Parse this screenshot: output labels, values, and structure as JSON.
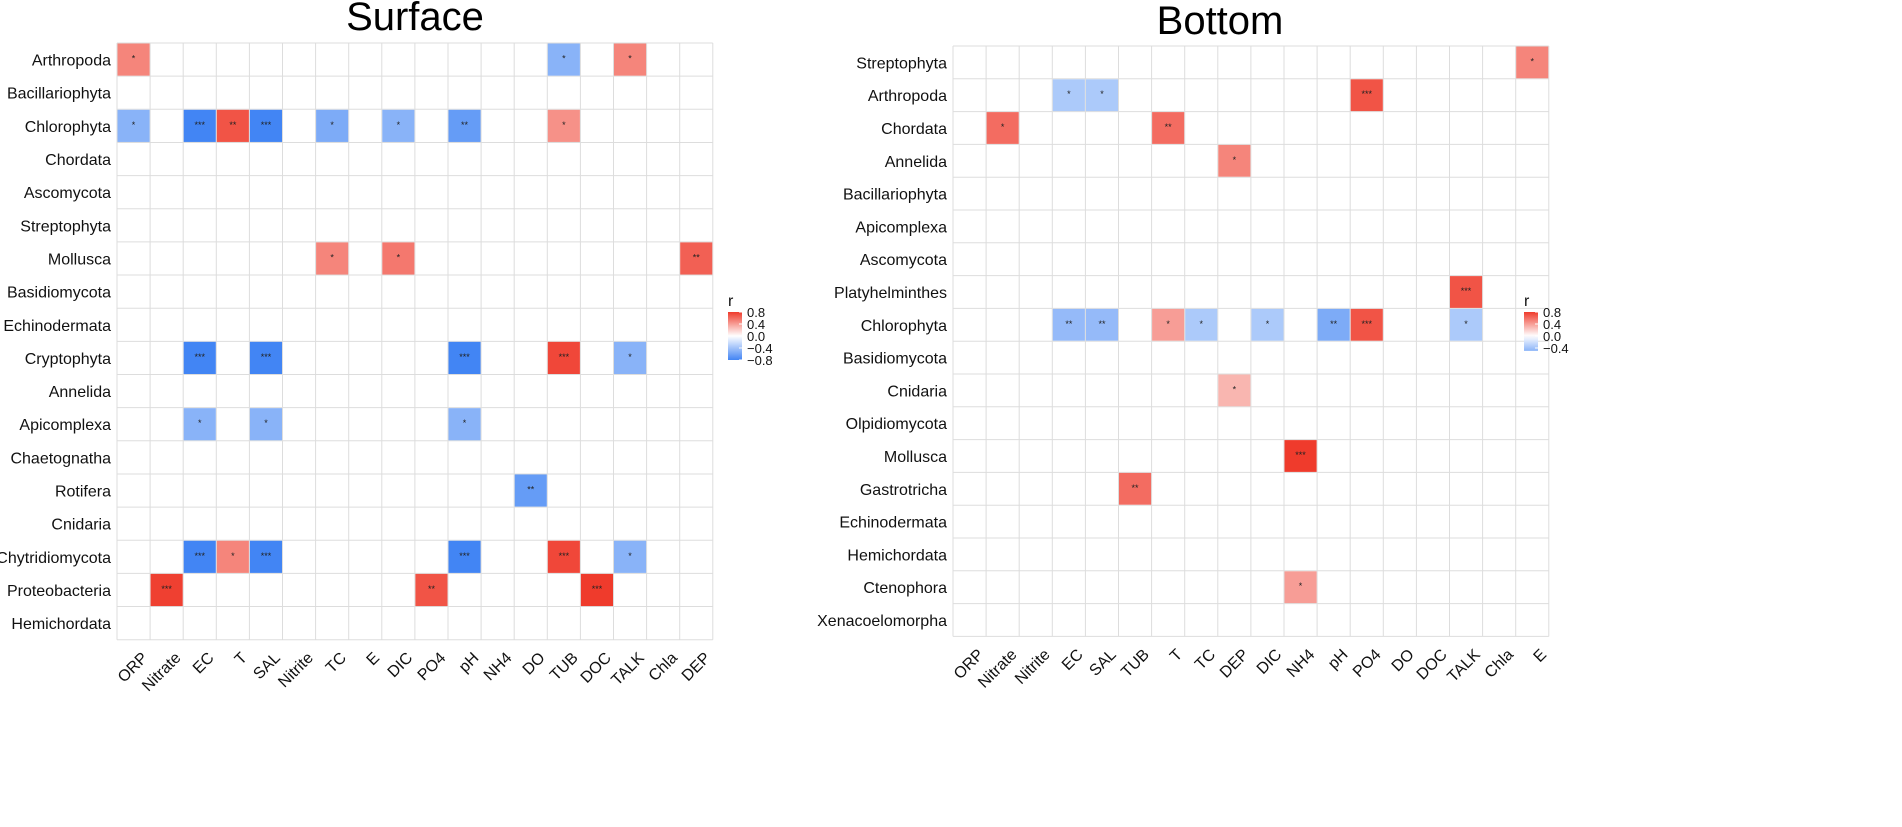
{
  "chart_data": [
    {
      "type": "heatmap",
      "title": "Surface",
      "rows": [
        "Arthropoda",
        "Bacillariophyta",
        "Chlorophyta",
        "Chordata",
        "Ascomycota",
        "Streptophyta",
        "Mollusca",
        "Basidiomycota",
        "Echinodermata",
        "Cryptophyta",
        "Annelida",
        "Apicomplexa",
        "Chaetognatha",
        "Rotifera",
        "Cnidaria",
        "Chytridiomycota",
        "Proteobacteria",
        "Hemichordata"
      ],
      "columns": [
        "ORP",
        "Nitrate",
        "EC",
        "T",
        "SAL",
        "Nitrite",
        "TC",
        "E",
        "DIC",
        "PO4",
        "pH",
        "NH4",
        "DO",
        "TUB",
        "DOC",
        "TALK",
        "Chla",
        "DEP"
      ],
      "cells": [
        {
          "row": "Arthropoda",
          "col": "ORP",
          "r": 0.5,
          "sig": "*"
        },
        {
          "row": "Arthropoda",
          "col": "TUB",
          "r": -0.5,
          "sig": "*"
        },
        {
          "row": "Arthropoda",
          "col": "TALK",
          "r": 0.5,
          "sig": "*"
        },
        {
          "row": "Chlorophyta",
          "col": "ORP",
          "r": -0.5,
          "sig": "*"
        },
        {
          "row": "Chlorophyta",
          "col": "EC",
          "r": -0.8,
          "sig": "***"
        },
        {
          "row": "Chlorophyta",
          "col": "T",
          "r": 0.7,
          "sig": "**"
        },
        {
          "row": "Chlorophyta",
          "col": "SAL",
          "r": -0.8,
          "sig": "***"
        },
        {
          "row": "Chlorophyta",
          "col": "TC",
          "r": -0.55,
          "sig": "*"
        },
        {
          "row": "Chlorophyta",
          "col": "DIC",
          "r": -0.5,
          "sig": "*"
        },
        {
          "row": "Chlorophyta",
          "col": "pH",
          "r": -0.65,
          "sig": "**"
        },
        {
          "row": "Chlorophyta",
          "col": "TUB",
          "r": 0.45,
          "sig": "*"
        },
        {
          "row": "Mollusca",
          "col": "TC",
          "r": 0.5,
          "sig": "*"
        },
        {
          "row": "Mollusca",
          "col": "DIC",
          "r": 0.55,
          "sig": "*"
        },
        {
          "row": "Mollusca",
          "col": "DEP",
          "r": 0.65,
          "sig": "**"
        },
        {
          "row": "Cryptophyta",
          "col": "EC",
          "r": -0.8,
          "sig": "***"
        },
        {
          "row": "Cryptophyta",
          "col": "SAL",
          "r": -0.8,
          "sig": "***"
        },
        {
          "row": "Cryptophyta",
          "col": "pH",
          "r": -0.8,
          "sig": "***"
        },
        {
          "row": "Cryptophyta",
          "col": "TUB",
          "r": 0.75,
          "sig": "***"
        },
        {
          "row": "Cryptophyta",
          "col": "TALK",
          "r": -0.5,
          "sig": "*"
        },
        {
          "row": "Apicomplexa",
          "col": "EC",
          "r": -0.5,
          "sig": "*"
        },
        {
          "row": "Apicomplexa",
          "col": "SAL",
          "r": -0.5,
          "sig": "*"
        },
        {
          "row": "Apicomplexa",
          "col": "pH",
          "r": -0.5,
          "sig": "*"
        },
        {
          "row": "Rotifera",
          "col": "DO",
          "r": -0.65,
          "sig": "**"
        },
        {
          "row": "Chytridiomycota",
          "col": "EC",
          "r": -0.8,
          "sig": "***"
        },
        {
          "row": "Chytridiomycota",
          "col": "T",
          "r": 0.5,
          "sig": "*"
        },
        {
          "row": "Chytridiomycota",
          "col": "SAL",
          "r": -0.8,
          "sig": "***"
        },
        {
          "row": "Chytridiomycota",
          "col": "pH",
          "r": -0.8,
          "sig": "***"
        },
        {
          "row": "Chytridiomycota",
          "col": "TUB",
          "r": 0.75,
          "sig": "***"
        },
        {
          "row": "Chytridiomycota",
          "col": "TALK",
          "r": -0.5,
          "sig": "*"
        },
        {
          "row": "Proteobacteria",
          "col": "Nitrate",
          "r": 0.78,
          "sig": "***"
        },
        {
          "row": "Proteobacteria",
          "col": "PO4",
          "r": 0.7,
          "sig": "**"
        },
        {
          "row": "Proteobacteria",
          "col": "DOC",
          "r": 0.85,
          "sig": "***"
        }
      ],
      "legend": {
        "title": "r",
        "ticks": [
          "0.8",
          "0.4",
          "0.0",
          "−0.4",
          "−0.8"
        ],
        "range": [
          -0.8,
          0.8
        ]
      }
    },
    {
      "type": "heatmap",
      "title": "Bottom",
      "rows": [
        "Streptophyta",
        "Arthropoda",
        "Chordata",
        "Annelida",
        "Bacillariophyta",
        "Apicomplexa",
        "Ascomycota",
        "Platyhelminthes",
        "Chlorophyta",
        "Basidiomycota",
        "Cnidaria",
        "Olpidiomycota",
        "Mollusca",
        "Gastrotricha",
        "Echinodermata",
        "Hemichordata",
        "Ctenophora",
        "Xenacoelomorpha"
      ],
      "columns": [
        "ORP",
        "Nitrate",
        "Nitrite",
        "EC",
        "SAL",
        "TUB",
        "T",
        "TC",
        "DEP",
        "DIC",
        "NH4",
        "pH",
        "PO4",
        "DO",
        "DOC",
        "TALK",
        "Chla",
        "E"
      ],
      "cells": [
        {
          "row": "Streptophyta",
          "col": "E",
          "r": 0.5,
          "sig": "*"
        },
        {
          "row": "Arthropoda",
          "col": "EC",
          "r": -0.35,
          "sig": "*"
        },
        {
          "row": "Arthropoda",
          "col": "SAL",
          "r": -0.35,
          "sig": "*"
        },
        {
          "row": "Arthropoda",
          "col": "PO4",
          "r": 0.7,
          "sig": "***"
        },
        {
          "row": "Chordata",
          "col": "Nitrate",
          "r": 0.6,
          "sig": "*"
        },
        {
          "row": "Chordata",
          "col": "T",
          "r": 0.6,
          "sig": "**"
        },
        {
          "row": "Annelida",
          "col": "DEP",
          "r": 0.5,
          "sig": "*"
        },
        {
          "row": "Platyhelminthes",
          "col": "TALK",
          "r": 0.7,
          "sig": "***"
        },
        {
          "row": "Chlorophyta",
          "col": "EC",
          "r": -0.45,
          "sig": "**"
        },
        {
          "row": "Chlorophyta",
          "col": "SAL",
          "r": -0.45,
          "sig": "**"
        },
        {
          "row": "Chlorophyta",
          "col": "T",
          "r": 0.4,
          "sig": "*"
        },
        {
          "row": "Chlorophyta",
          "col": "TC",
          "r": -0.35,
          "sig": "*"
        },
        {
          "row": "Chlorophyta",
          "col": "DIC",
          "r": -0.35,
          "sig": "*"
        },
        {
          "row": "Chlorophyta",
          "col": "pH",
          "r": -0.55,
          "sig": "**"
        },
        {
          "row": "Chlorophyta",
          "col": "PO4",
          "r": 0.7,
          "sig": "***"
        },
        {
          "row": "Chlorophyta",
          "col": "TALK",
          "r": -0.35,
          "sig": "*"
        },
        {
          "row": "Cnidaria",
          "col": "DEP",
          "r": 0.3,
          "sig": "*"
        },
        {
          "row": "Mollusca",
          "col": "NH4",
          "r": 0.8,
          "sig": "***"
        },
        {
          "row": "Gastrotricha",
          "col": "TUB",
          "r": 0.6,
          "sig": "**"
        },
        {
          "row": "Ctenophora",
          "col": "NH4",
          "r": 0.4,
          "sig": "*"
        }
      ],
      "legend": {
        "title": "r",
        "ticks": [
          "0.8",
          "0.4",
          "0.0",
          "−0.4"
        ],
        "range": [
          -0.5,
          0.8
        ]
      }
    }
  ]
}
